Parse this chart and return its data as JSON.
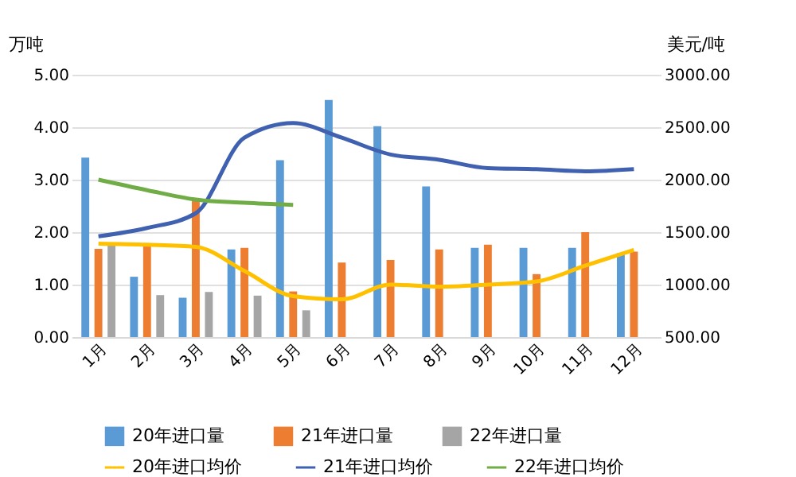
{
  "chart_data": {
    "type": "bar",
    "categories": [
      "1月",
      "2月",
      "3月",
      "4月",
      "5月",
      "6月",
      "7月",
      "8月",
      "9月",
      "10月",
      "11月",
      "12月"
    ],
    "ylabel": "万吨",
    "y2label": "美元/吨",
    "ylim": [
      0,
      5
    ],
    "yticks": [
      {
        "value": 0,
        "label": "0.00"
      },
      {
        "value": 1,
        "label": "1.00"
      },
      {
        "value": 2,
        "label": "2.00"
      },
      {
        "value": 3,
        "label": "3.00"
      },
      {
        "value": 4,
        "label": "4.00"
      },
      {
        "value": 5,
        "label": "5.00"
      }
    ],
    "y2lim": [
      500,
      3000
    ],
    "y2ticks": [
      {
        "value": 500,
        "label": "500.00"
      },
      {
        "value": 1000,
        "label": "1000.00"
      },
      {
        "value": 1500,
        "label": "1500.00"
      },
      {
        "value": 2000,
        "label": "2000.00"
      },
      {
        "value": 2500,
        "label": "2500.00"
      },
      {
        "value": 3000,
        "label": "3000.00"
      }
    ],
    "grid": "y",
    "legend": "bottom",
    "series": [
      {
        "name": "20年进口量",
        "color": "#5b9bd5",
        "values": [
          3.42,
          1.15,
          0.75,
          1.67,
          3.37,
          4.52,
          4.02,
          2.87,
          1.7,
          1.7,
          1.7,
          1.6
        ]
      },
      {
        "name": "21年进口量",
        "color": "#ed7d31",
        "values": [
          1.68,
          1.75,
          2.6,
          1.7,
          0.87,
          1.42,
          1.47,
          1.67,
          1.76,
          1.2,
          2.0,
          1.63
        ]
      },
      {
        "name": "22年进口量",
        "color": "#a5a5a5",
        "values": [
          1.76,
          0.8,
          0.86,
          0.79,
          0.51,
          null,
          null,
          null,
          null,
          null,
          null,
          null
        ]
      },
      {
        "name": "20年进口均价",
        "color": "#ffc000",
        "type": "line",
        "axis": "y2",
        "values": [
          1390,
          1380,
          1360,
          1130,
          890,
          860,
          1000,
          980,
          1000,
          1030,
          1180,
          1330
        ]
      },
      {
        "name": "21年进口均价",
        "color": "#4060b0",
        "type": "line",
        "axis": "y2",
        "values": [
          1460,
          1540,
          1680,
          2400,
          2540,
          2400,
          2240,
          2190,
          2110,
          2100,
          2080,
          2100
        ]
      },
      {
        "name": "22年进口均价",
        "color": "#70ad47",
        "type": "line",
        "axis": "y2",
        "values": [
          2000,
          1900,
          1810,
          1780,
          1760,
          null,
          null,
          null,
          null,
          null,
          null,
          null
        ]
      }
    ]
  }
}
